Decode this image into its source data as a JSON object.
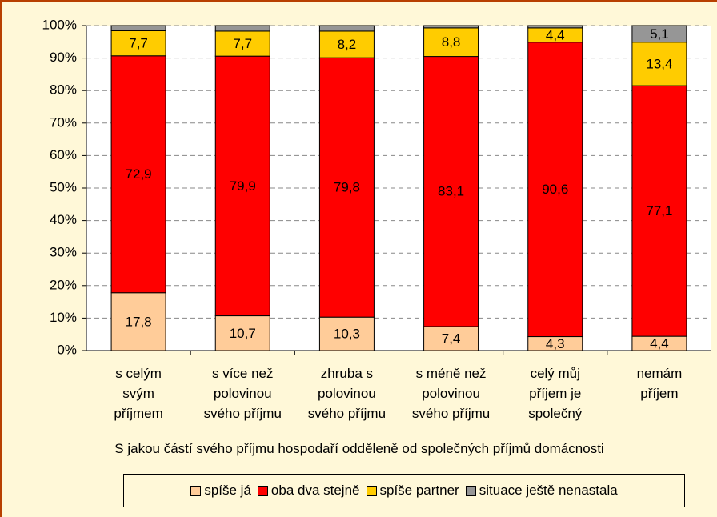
{
  "chart_data": {
    "type": "stacked_bar_100",
    "categories": [
      "s celým\nsvým\npříjmem",
      "s více než\npolovinou\nsvého příjmu",
      "zhruba s\npolovinou\nsvého příjmu",
      "s méně než\npolovinou\nsvého příjmu",
      "celý můj\npříjem je\nspolečný",
      "nemám\npříjem"
    ],
    "x_label": "S jakou částí svého příjmu hospodaří odděleně od společných příjmů domácnosti",
    "series": [
      {
        "name": "spíše já",
        "color": "#FFCC99",
        "values": [
          17.8,
          10.7,
          10.3,
          7.4,
          4.3,
          4.4
        ],
        "value_labels": [
          "17,8",
          "10,7",
          "10,3",
          "7,4",
          "4,3",
          "4,4"
        ]
      },
      {
        "name": "oba dva stejně",
        "color": "#FF0000",
        "values": [
          72.9,
          79.9,
          79.8,
          83.1,
          90.6,
          77.1
        ],
        "value_labels": [
          "72,9",
          "79,9",
          "79,8",
          "83,1",
          "90,6",
          "77,1"
        ]
      },
      {
        "name": "spíše partner",
        "color": "#FFCC00",
        "values": [
          7.7,
          7.7,
          8.2,
          8.8,
          4.4,
          13.4
        ],
        "value_labels": [
          "7,7",
          "7,7",
          "8,2",
          "8,8",
          "4,4",
          "13,4"
        ]
      },
      {
        "name": "situace ještě nenastala",
        "color": "#969696",
        "values": [
          1.6,
          1.7,
          1.7,
          0.7,
          0.7,
          5.1
        ],
        "value_labels": [
          null,
          null,
          null,
          null,
          null,
          "5,1"
        ]
      }
    ],
    "ylim": [
      0,
      100
    ],
    "yticks": [
      {
        "value": 0,
        "label": "0%"
      },
      {
        "value": 10,
        "label": "10%"
      },
      {
        "value": 20,
        "label": "20%"
      },
      {
        "value": 30,
        "label": "30%"
      },
      {
        "value": 40,
        "label": "40%"
      },
      {
        "value": 50,
        "label": "50%"
      },
      {
        "value": 60,
        "label": "60%"
      },
      {
        "value": 70,
        "label": "70%"
      },
      {
        "value": 80,
        "label": "80%"
      },
      {
        "value": 90,
        "label": "90%"
      },
      {
        "value": 100,
        "label": "100%"
      }
    ],
    "grid": true,
    "legend": "bottom"
  }
}
